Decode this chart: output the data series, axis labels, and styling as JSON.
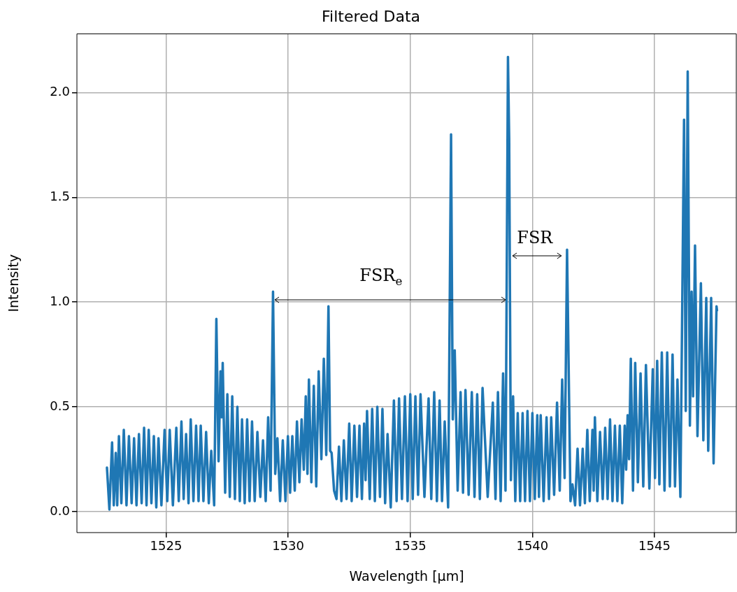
{
  "chart_data": {
    "type": "line",
    "title": "Filtered Data",
    "xlabel": "Wavelength [μm]",
    "ylabel": "Intensity",
    "xlim": [
      1521.35,
      1548.35
    ],
    "ylim": [
      -0.1,
      2.28
    ],
    "xticks": [
      1525,
      1530,
      1535,
      1540,
      1545
    ],
    "yticks": [
      {
        "value": 0,
        "label": "0.0"
      },
      {
        "value": 0.5,
        "label": "0.5"
      },
      {
        "value": 1,
        "label": "1.0"
      },
      {
        "value": 1.5,
        "label": "1.5"
      },
      {
        "value": 2,
        "label": "2.0"
      }
    ],
    "grid": true,
    "marker": "none",
    "line_style": "solid",
    "annotations": [
      "FSR$_{e}$",
      "FSR"
    ],
    "series": [
      {
        "color": "#1f77b4",
        "x": [
          1522.58,
          1522.68,
          1522.79,
          1522.86,
          1522.94,
          1523.0,
          1523.07,
          1523.17,
          1523.27,
          1523.38,
          1523.48,
          1523.59,
          1523.69,
          1523.79,
          1523.89,
          1524.0,
          1524.1,
          1524.2,
          1524.29,
          1524.4,
          1524.5,
          1524.6,
          1524.69,
          1524.81,
          1524.94,
          1525.05,
          1525.15,
          1525.28,
          1525.42,
          1525.52,
          1525.63,
          1525.72,
          1525.82,
          1525.92,
          1526.01,
          1526.12,
          1526.23,
          1526.33,
          1526.42,
          1526.53,
          1526.64,
          1526.75,
          1526.85,
          1526.97,
          1527.06,
          1527.15,
          1527.23,
          1527.28,
          1527.32,
          1527.42,
          1527.51,
          1527.61,
          1527.71,
          1527.82,
          1527.92,
          1528.02,
          1528.11,
          1528.22,
          1528.32,
          1528.42,
          1528.52,
          1528.63,
          1528.74,
          1528.86,
          1528.97,
          1529.08,
          1529.18,
          1529.28,
          1529.38,
          1529.47,
          1529.56,
          1529.67,
          1529.78,
          1529.89,
          1529.99,
          1530.08,
          1530.17,
          1530.27,
          1530.36,
          1530.46,
          1530.55,
          1530.64,
          1530.72,
          1530.79,
          1530.85,
          1530.95,
          1531.05,
          1531.15,
          1531.25,
          1531.36,
          1531.46,
          1531.56,
          1531.65,
          1531.72,
          1531.78,
          1531.88,
          1531.98,
          1532.08,
          1532.18,
          1532.28,
          1532.39,
          1532.5,
          1532.6,
          1532.71,
          1532.82,
          1532.92,
          1533.02,
          1533.11,
          1533.17,
          1533.23,
          1533.34,
          1533.44,
          1533.55,
          1533.65,
          1533.76,
          1533.86,
          1533.97,
          1534.07,
          1534.2,
          1534.33,
          1534.44,
          1534.54,
          1534.66,
          1534.78,
          1534.89,
          1535.0,
          1535.1,
          1535.21,
          1535.32,
          1535.42,
          1535.58,
          1535.75,
          1535.86,
          1535.98,
          1536.09,
          1536.2,
          1536.3,
          1536.41,
          1536.55,
          1536.67,
          1536.74,
          1536.82,
          1536.94,
          1537.06,
          1537.16,
          1537.26,
          1537.39,
          1537.52,
          1537.63,
          1537.74,
          1537.85,
          1537.96,
          1538.17,
          1538.38,
          1538.49,
          1538.59,
          1538.7,
          1538.8,
          1538.9,
          1539.0,
          1539.05,
          1539.12,
          1539.21,
          1539.3,
          1539.4,
          1539.5,
          1539.6,
          1539.7,
          1539.8,
          1539.9,
          1540.0,
          1540.1,
          1540.2,
          1540.27,
          1540.34,
          1540.46,
          1540.58,
          1540.68,
          1540.77,
          1540.89,
          1541.01,
          1541.12,
          1541.22,
          1541.32,
          1541.42,
          1541.56,
          1541.64,
          1541.75,
          1541.85,
          1541.95,
          1542.06,
          1542.15,
          1542.25,
          1542.35,
          1542.46,
          1542.51,
          1542.56,
          1542.66,
          1542.77,
          1542.88,
          1542.98,
          1543.08,
          1543.18,
          1543.28,
          1543.38,
          1543.48,
          1543.58,
          1543.68,
          1543.78,
          1543.84,
          1543.9,
          1543.96,
          1544.03,
          1544.12,
          1544.21,
          1544.32,
          1544.43,
          1544.54,
          1544.65,
          1544.79,
          1544.93,
          1545.02,
          1545.11,
          1545.2,
          1545.3,
          1545.41,
          1545.52,
          1545.63,
          1545.74,
          1545.84,
          1545.94,
          1546.06,
          1546.21,
          1546.28,
          1546.36,
          1546.45,
          1546.52,
          1546.58,
          1546.66,
          1546.76,
          1546.9,
          1547.0,
          1547.12,
          1547.2,
          1547.32,
          1547.42,
          1547.54,
          1547.56
        ],
        "values": [
          0.21,
          0.01,
          0.33,
          0.03,
          0.28,
          0.03,
          0.36,
          0.04,
          0.39,
          0.03,
          0.36,
          0.04,
          0.35,
          0.03,
          0.37,
          0.04,
          0.4,
          0.03,
          0.39,
          0.04,
          0.36,
          0.02,
          0.35,
          0.03,
          0.39,
          0.05,
          0.39,
          0.03,
          0.4,
          0.05,
          0.43,
          0.06,
          0.37,
          0.04,
          0.44,
          0.05,
          0.41,
          0.05,
          0.41,
          0.05,
          0.38,
          0.04,
          0.29,
          0.03,
          0.92,
          0.24,
          0.67,
          0.45,
          0.71,
          0.09,
          0.56,
          0.07,
          0.55,
          0.06,
          0.5,
          0.05,
          0.44,
          0.04,
          0.44,
          0.05,
          0.43,
          0.05,
          0.38,
          0.07,
          0.34,
          0.05,
          0.45,
          0.1,
          1.05,
          0.18,
          0.35,
          0.05,
          0.34,
          0.05,
          0.36,
          0.09,
          0.36,
          0.1,
          0.43,
          0.14,
          0.44,
          0.2,
          0.55,
          0.18,
          0.63,
          0.14,
          0.6,
          0.12,
          0.67,
          0.25,
          0.73,
          0.27,
          0.98,
          0.29,
          0.28,
          0.1,
          0.06,
          0.31,
          0.05,
          0.34,
          0.06,
          0.42,
          0.05,
          0.41,
          0.07,
          0.41,
          0.06,
          0.42,
          0.15,
          0.48,
          0.06,
          0.49,
          0.05,
          0.5,
          0.07,
          0.49,
          0.04,
          0.37,
          0.02,
          0.53,
          0.05,
          0.54,
          0.06,
          0.55,
          0.05,
          0.56,
          0.06,
          0.55,
          0.08,
          0.56,
          0.07,
          0.54,
          0.06,
          0.57,
          0.05,
          0.53,
          0.05,
          0.43,
          0.02,
          1.8,
          0.44,
          0.77,
          0.1,
          0.57,
          0.09,
          0.58,
          0.08,
          0.57,
          0.07,
          0.56,
          0.06,
          0.59,
          0.07,
          0.52,
          0.06,
          0.57,
          0.05,
          0.66,
          0.1,
          2.17,
          1.78,
          0.15,
          0.55,
          0.05,
          0.47,
          0.05,
          0.47,
          0.05,
          0.48,
          0.05,
          0.47,
          0.06,
          0.46,
          0.07,
          0.46,
          0.05,
          0.45,
          0.06,
          0.45,
          0.08,
          0.52,
          0.1,
          0.63,
          0.16,
          1.25,
          0.05,
          0.13,
          0.03,
          0.3,
          0.03,
          0.3,
          0.04,
          0.39,
          0.05,
          0.39,
          0.1,
          0.45,
          0.05,
          0.38,
          0.06,
          0.4,
          0.06,
          0.44,
          0.05,
          0.41,
          0.05,
          0.41,
          0.04,
          0.41,
          0.2,
          0.46,
          0.25,
          0.73,
          0.1,
          0.71,
          0.14,
          0.66,
          0.12,
          0.7,
          0.11,
          0.68,
          0.16,
          0.72,
          0.13,
          0.76,
          0.1,
          0.76,
          0.12,
          0.75,
          0.12,
          0.63,
          0.07,
          1.87,
          0.48,
          2.1,
          0.41,
          1.05,
          0.55,
          1.27,
          0.36,
          1.09,
          0.34,
          1.02,
          0.29,
          1.02,
          0.23,
          0.98,
          0.96
        ]
      }
    ]
  }
}
